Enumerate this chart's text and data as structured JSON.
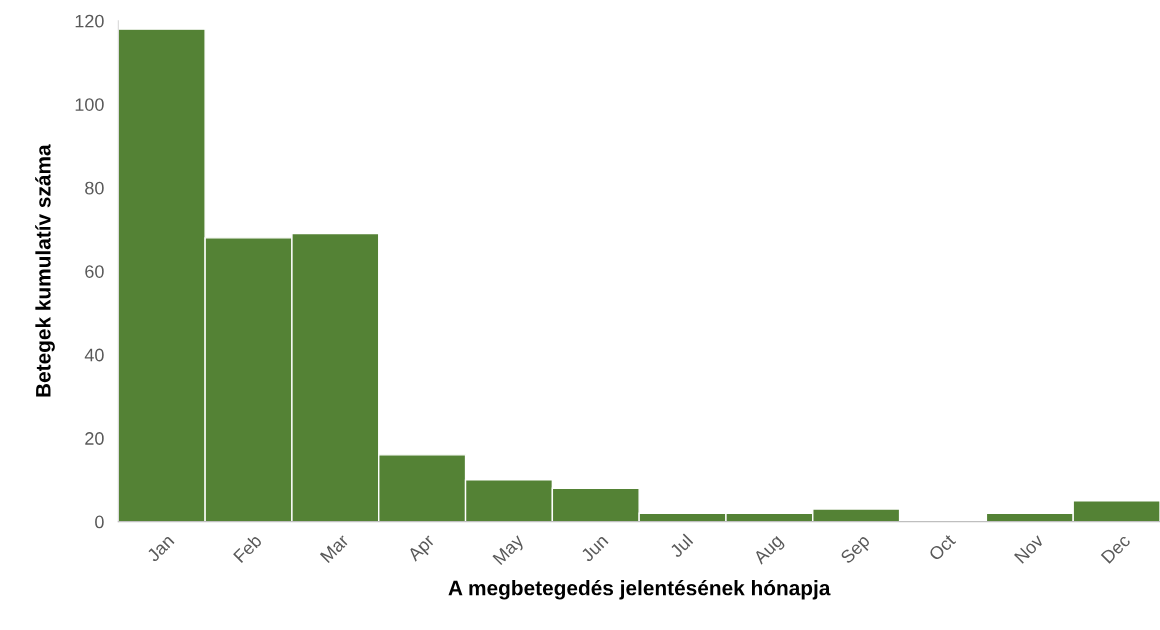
{
  "chart_data": {
    "type": "bar",
    "xlabel": "A megbetegedés jelentésének hónapja",
    "ylabel": "Betegek kumulatív száma",
    "categories": [
      "Jan",
      "Feb",
      "Mar",
      "Apr",
      "May",
      "Jun",
      "Jul",
      "Aug",
      "Sep",
      "Oct",
      "Nov",
      "Dec"
    ],
    "values": [
      118,
      68,
      69,
      16,
      10,
      8,
      2,
      2,
      3,
      0,
      2,
      5
    ],
    "color": "#548235",
    "ylim": [
      0,
      120
    ],
    "yticks": [
      0,
      20,
      40,
      60,
      80,
      100,
      120
    ],
    "grid": false
  }
}
